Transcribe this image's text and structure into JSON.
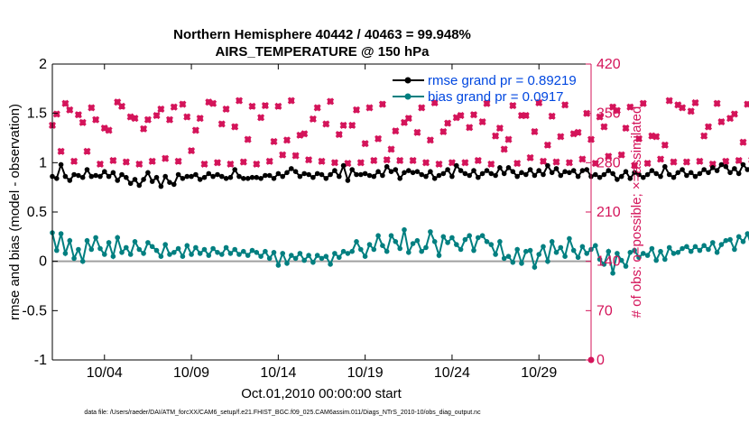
{
  "chart_data": {
    "type": "line",
    "title": "Northern Hemisphere 40442 / 40463 = 99.948%",
    "subtitle": "AIRS_TEMPERATURE @ 150 hPa",
    "xlabel": "Oct.01,2010 00:00:00 start",
    "ylabel": "rmse and bias (model - observation)",
    "y2label": "# of obs: o=possible; ×=assimilated",
    "footer": "data file: /Users/raeder/DAI/ATM_forcXX/CAM6_setup/f.e21.FHIST_BGC.f09_025.CAM6assim.011/Diags_NTrS_2010-10/obs_diag_output.nc",
    "xlim": [
      1.0,
      32.0
    ],
    "ylim": [
      -1,
      2
    ],
    "y2lim": [
      0,
      420
    ],
    "grid": false,
    "legend_position": "top-right",
    "x_ticks": [
      {
        "pos": 4,
        "label": "10/04"
      },
      {
        "pos": 9,
        "label": "10/09"
      },
      {
        "pos": 14,
        "label": "10/14"
      },
      {
        "pos": 19,
        "label": "10/19"
      },
      {
        "pos": 24,
        "label": "10/24"
      },
      {
        "pos": 29,
        "label": "10/29"
      }
    ],
    "y_ticks": [
      "-1",
      "-0.5",
      "0",
      "0.5",
      "1",
      "1.5",
      "2"
    ],
    "y2_ticks": [
      "0",
      "70",
      "140",
      "210",
      "280",
      "350",
      "420"
    ],
    "x_start": 1.0,
    "x_step": 0.25,
    "series": [
      {
        "name": "rmse grand pr = 0.89219",
        "axis": "left",
        "color": "#000000",
        "marker": "circle",
        "values": [
          0.86,
          0.84,
          0.98,
          0.86,
          0.82,
          0.88,
          0.87,
          0.85,
          0.93,
          0.86,
          0.87,
          0.86,
          0.91,
          0.86,
          0.9,
          0.82,
          0.88,
          0.85,
          0.79,
          0.83,
          0.77,
          0.83,
          0.9,
          0.81,
          0.85,
          0.76,
          0.86,
          0.8,
          0.78,
          0.88,
          0.84,
          0.86,
          0.86,
          0.88,
          0.83,
          0.85,
          0.89,
          0.86,
          0.88,
          0.86,
          0.84,
          0.85,
          0.93,
          0.86,
          0.84,
          0.84,
          0.85,
          0.85,
          0.84,
          0.87,
          0.87,
          0.84,
          0.89,
          0.86,
          0.9,
          0.94,
          0.91,
          0.86,
          0.89,
          0.88,
          0.85,
          0.89,
          0.88,
          0.84,
          0.88,
          0.92,
          0.86,
          0.97,
          0.82,
          0.93,
          0.88,
          0.88,
          0.89,
          0.87,
          0.86,
          0.91,
          0.87,
          0.96,
          0.91,
          0.93,
          0.84,
          0.9,
          0.92,
          0.9,
          0.91,
          0.88,
          0.86,
          0.91,
          0.84,
          0.87,
          0.89,
          0.93,
          0.86,
          0.97,
          0.92,
          0.89,
          0.87,
          0.92,
          0.85,
          0.89,
          0.92,
          0.89,
          0.87,
          0.95,
          0.89,
          0.95,
          0.91,
          0.86,
          0.9,
          0.88,
          0.93,
          0.87,
          0.92,
          0.88,
          0.97,
          0.9,
          0.94,
          0.87,
          0.91,
          0.9,
          0.92,
          0.86,
          0.92,
          0.93,
          0.86,
          0.88,
          0.85,
          0.88,
          0.92,
          0.89,
          0.83,
          0.86,
          0.91,
          0.84,
          0.9,
          0.88,
          0.85,
          0.88,
          0.92,
          0.89,
          0.86,
          0.96,
          0.88,
          0.85,
          0.9,
          0.93,
          0.87,
          0.9,
          0.86,
          0.89,
          0.93,
          0.9,
          0.95,
          0.92,
          0.98,
          0.96,
          0.9,
          0.94,
          0.89,
          0.98,
          0.93,
          0.97,
          0.92,
          0.97,
          1.09,
          0.97,
          0.95,
          1.05,
          1.0,
          1.03,
          1.01,
          0.98,
          1.02,
          1.0,
          1.01
        ]
      },
      {
        "name": "bias grand pr = 0.0917",
        "axis": "left",
        "color": "#007f80",
        "marker": "circle",
        "values": [
          0.29,
          0.11,
          0.28,
          0.08,
          0.21,
          0.03,
          0.12,
          0.0,
          0.21,
          0.12,
          0.24,
          0.13,
          0.07,
          0.19,
          0.05,
          0.24,
          0.09,
          0.14,
          0.07,
          0.2,
          0.12,
          0.08,
          0.19,
          0.15,
          0.11,
          0.05,
          0.17,
          0.07,
          0.09,
          0.13,
          0.05,
          0.16,
          0.07,
          0.14,
          0.08,
          0.12,
          0.06,
          0.13,
          0.09,
          0.07,
          0.14,
          0.08,
          0.12,
          0.07,
          0.1,
          0.06,
          0.11,
          0.09,
          0.05,
          0.1,
          0.03,
          0.09,
          -0.04,
          0.08,
          -0.02,
          0.06,
          0.03,
          0.08,
          0.01,
          0.06,
          -0.01,
          0.06,
          0.03,
          0.05,
          -0.03,
          0.08,
          0.04,
          0.1,
          0.08,
          0.1,
          0.2,
          0.12,
          0.05,
          0.17,
          0.12,
          0.26,
          0.16,
          0.1,
          0.26,
          0.2,
          0.13,
          0.32,
          0.09,
          0.18,
          0.21,
          0.1,
          0.14,
          0.3,
          0.2,
          0.06,
          0.25,
          0.19,
          0.24,
          0.17,
          0.12,
          0.22,
          0.26,
          0.11,
          0.24,
          0.26,
          0.2,
          0.17,
          0.07,
          0.2,
          0.03,
          0.05,
          -0.01,
          0.12,
          -0.02,
          0.1,
          0.11,
          -0.06,
          0.07,
          0.15,
          0.0,
          0.2,
          0.09,
          0.14,
          0.05,
          0.23,
          0.11,
          0.04,
          0.15,
          0.08,
          0.12,
          0.16,
          0.02,
          -0.03,
          0.1,
          -0.12,
          0.08,
          0.01,
          -0.05,
          0.09,
          0.11,
          0.04,
          0.08,
          0.06,
          0.13,
          0.01,
          0.1,
          0.02,
          0.14,
          0.08,
          0.09,
          0.13,
          0.15,
          0.1,
          0.15,
          0.11,
          0.16,
          0.12,
          0.19,
          0.09,
          0.17,
          0.21,
          0.22,
          0.12,
          0.25,
          0.2,
          0.28,
          0.15,
          0.25,
          0.1,
          0.2,
          0.22,
          0.19,
          0.17,
          0.19,
          0.08,
          -0.01,
          0.09,
          -0.16,
          0.02,
          0.35,
          0.14,
          0.27,
          0.27,
          0.21,
          0.18,
          0.24,
          0.14
        ]
      },
      {
        "name": "# obs possible",
        "axis": "right",
        "color": "#d4145a",
        "marker": "circle",
        "values": [
          333,
          349,
          296,
          364,
          355,
          282,
          348,
          337,
          296,
          358,
          341,
          278,
          329,
          326,
          283,
          366,
          360,
          281,
          345,
          343,
          278,
          328,
          341,
          282,
          347,
          356,
          286,
          341,
          359,
          282,
          363,
          345,
          297,
          326,
          343,
          278,
          366,
          364,
          280,
          335,
          356,
          278,
          331,
          368,
          281,
          313,
          360,
          278,
          344,
          361,
          282,
          310,
          360,
          291,
          312,
          368,
          290,
          319,
          321,
          284,
          342,
          358,
          282,
          335,
          367,
          280,
          320,
          333,
          279,
          333,
          355,
          280,
          307,
          358,
          283,
          314,
          363,
          284,
          299,
          325,
          283,
          337,
          343,
          283,
          323,
          358,
          280,
          312,
          365,
          278,
          324,
          336,
          280,
          344,
          347,
          280,
          330,
          348,
          283,
          338,
          364,
          278,
          318,
          329,
          299,
          313,
          361,
          279,
          347,
          347,
          287,
          324,
          365,
          282,
          305,
          346,
          281,
          317,
          362,
          280,
          321,
          323,
          285,
          350,
          313,
          279,
          345,
          331,
          289,
          359,
          354,
          291,
          329,
          359,
          276,
          314,
          364,
          279,
          318,
          317,
          285,
          305,
          368,
          281,
          362,
          358,
          281,
          353,
          365,
          282,
          318,
          331,
          278,
          364,
          338,
          282,
          343,
          349,
          283,
          309,
          363,
          284,
          316,
          366,
          286,
          350,
          320,
          290,
          342,
          354,
          283,
          348,
          358,
          283,
          363,
          364,
          280,
          347,
          353,
          285,
          364,
          356
        ]
      },
      {
        "name": "# obs assimilated",
        "axis": "right",
        "color": "#d4145a",
        "marker": "cross",
        "values": [
          333,
          349,
          296,
          364,
          355,
          282,
          348,
          337,
          296,
          358,
          341,
          278,
          329,
          326,
          283,
          366,
          360,
          281,
          345,
          343,
          278,
          328,
          341,
          282,
          347,
          356,
          286,
          341,
          359,
          282,
          363,
          345,
          297,
          326,
          343,
          278,
          366,
          364,
          280,
          335,
          356,
          278,
          331,
          368,
          281,
          313,
          360,
          278,
          344,
          361,
          282,
          310,
          360,
          291,
          312,
          368,
          290,
          319,
          321,
          284,
          342,
          358,
          282,
          335,
          367,
          280,
          320,
          333,
          279,
          333,
          355,
          280,
          307,
          358,
          283,
          314,
          363,
          284,
          299,
          325,
          283,
          337,
          343,
          283,
          323,
          358,
          280,
          312,
          365,
          278,
          324,
          336,
          280,
          344,
          347,
          280,
          330,
          348,
          283,
          338,
          364,
          278,
          318,
          329,
          299,
          313,
          361,
          279,
          347,
          347,
          287,
          324,
          365,
          282,
          305,
          346,
          281,
          317,
          362,
          280,
          321,
          323,
          285,
          350,
          313,
          279,
          345,
          331,
          289,
          359,
          354,
          291,
          329,
          359,
          276,
          314,
          364,
          279,
          318,
          317,
          285,
          305,
          368,
          281,
          362,
          358,
          281,
          353,
          365,
          282,
          318,
          331,
          278,
          364,
          338,
          282,
          343,
          349,
          283,
          309,
          363,
          284,
          316,
          366,
          286,
          350,
          320,
          290,
          342,
          354,
          283,
          348,
          358,
          283,
          363,
          364,
          280,
          347,
          353,
          285,
          364,
          356
        ]
      }
    ]
  },
  "colors": {
    "axis_left": "#000000",
    "axis_right": "#d4145a",
    "legend_text": "#0047e0",
    "zero_line": "#a0a0a0"
  }
}
